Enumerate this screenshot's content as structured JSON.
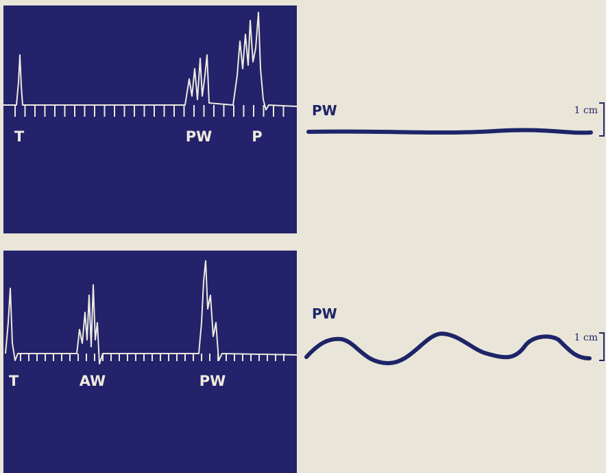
{
  "top_panel": {
    "echo_labels": [
      "T",
      "PW",
      "P"
    ],
    "trace_label": "PW",
    "scale_label": "1 cm"
  },
  "bottom_panel": {
    "echo_labels": [
      "T",
      "AW",
      "PW"
    ],
    "trace_label": "PW",
    "scale_label": "1 cm"
  }
}
